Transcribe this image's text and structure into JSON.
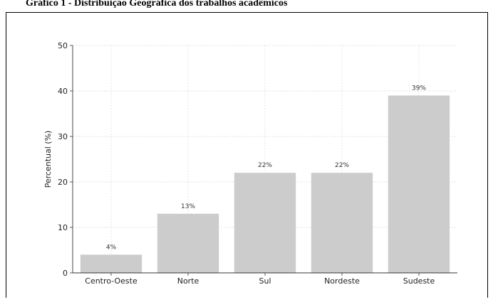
{
  "caption": "Gráfico 1 - Distribuição Geográfica dos trabalhos acadêmicos",
  "chart_data": {
    "type": "bar",
    "title": "",
    "xlabel": "",
    "ylabel": "Percentual (%)",
    "ylim": [
      0,
      50
    ],
    "yticks": [
      0,
      10,
      20,
      30,
      40,
      50
    ],
    "grid": true,
    "categories": [
      "Centro-Oeste",
      "Norte",
      "Sul",
      "Nordeste",
      "Sudeste"
    ],
    "values": [
      4,
      13,
      22,
      22,
      39
    ],
    "data_labels": [
      "4%",
      "13%",
      "22%",
      "22%",
      "39%"
    ],
    "bar_color": "#cccccc"
  }
}
